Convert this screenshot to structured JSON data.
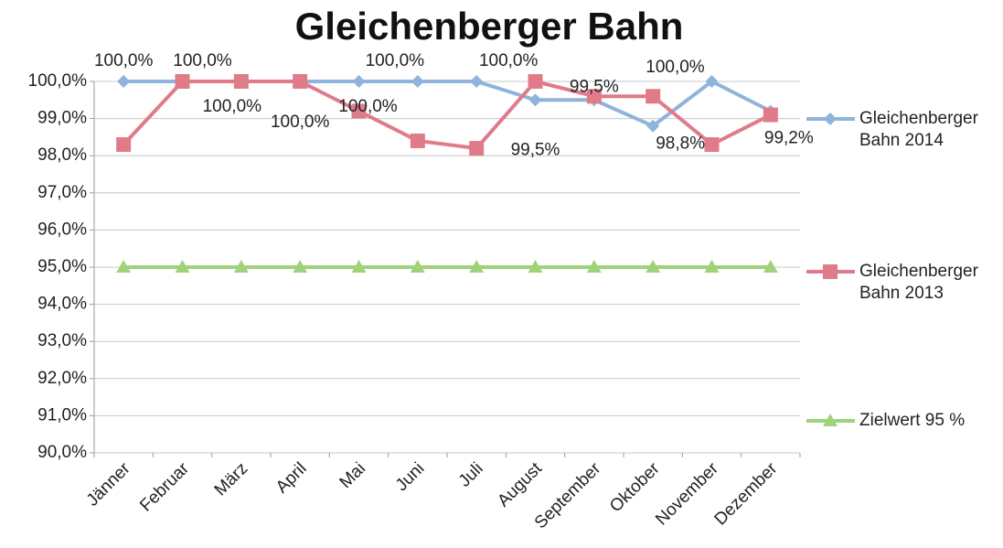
{
  "chart_data": {
    "type": "line",
    "title": "Gleichenberger Bahn",
    "categories": [
      "Jänner",
      "Februar",
      "März",
      "April",
      "Mai",
      "Juni",
      "Juli",
      "August",
      "September",
      "Oktober",
      "November",
      "Dezember"
    ],
    "series": [
      {
        "name": "Gleichenberger Bahn 2014",
        "color": "#8fb4dc",
        "marker": "diamond",
        "values": [
          100,
          100,
          100,
          100,
          100,
          100,
          100,
          99.5,
          99.5,
          98.8,
          100,
          99.2
        ],
        "value_labels": [
          "100,0%",
          "100,0%",
          "100,0%",
          "100,0%",
          "100,0%",
          "100,0%",
          "100,0%",
          "99,5%",
          "99,5%",
          "98,8%",
          "100,0%",
          "99,2%"
        ]
      },
      {
        "name": "Gleichenberger Bahn 2013",
        "color": "#e07b8a",
        "marker": "square",
        "values": [
          98.3,
          100,
          100,
          100,
          99.2,
          98.4,
          98.2,
          100,
          99.6,
          99.6,
          98.3,
          99.1
        ]
      },
      {
        "name": "Zielwert 95 %",
        "color": "#9fd27a",
        "marker": "triangle",
        "values": [
          95,
          95,
          95,
          95,
          95,
          95,
          95,
          95,
          95,
          95,
          95,
          95
        ]
      }
    ],
    "ylim": [
      90,
      100
    ],
    "yticks": [
      {
        "value": 90,
        "label": "90,0%"
      },
      {
        "value": 91,
        "label": "91,0%"
      },
      {
        "value": 92,
        "label": "92,0%"
      },
      {
        "value": 93,
        "label": "93,0%"
      },
      {
        "value": 94,
        "label": "94,0%"
      },
      {
        "value": 95,
        "label": "95,0%"
      },
      {
        "value": 96,
        "label": "96,0%"
      },
      {
        "value": 97,
        "label": "97,0%"
      },
      {
        "value": 98,
        "label": "98,0%"
      },
      {
        "value": 99,
        "label": "99,0%"
      },
      {
        "value": 100,
        "label": "100,0%"
      }
    ],
    "grid": true,
    "legend": "right"
  }
}
